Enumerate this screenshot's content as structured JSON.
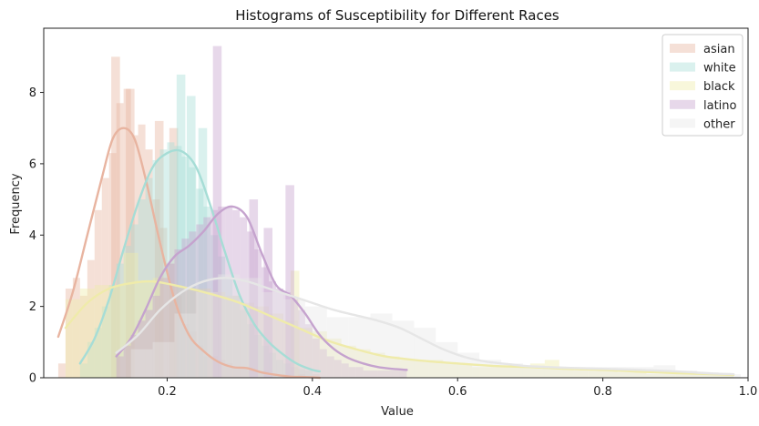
{
  "chart_data": {
    "type": "histogram",
    "title": "Histograms of Susceptibility for Different Races",
    "xlabel": "Value",
    "ylabel": "Frequency",
    "xlim": [
      0.03,
      1.0
    ],
    "ylim": [
      0,
      9.8
    ],
    "xticks": [
      0.2,
      0.4,
      0.6,
      0.8,
      1.0
    ],
    "yticks": [
      0,
      2,
      4,
      6,
      8
    ],
    "grid": false,
    "legend_position": "top-right",
    "series": [
      {
        "name": "asian",
        "color": "#E8B4A0",
        "bins": [
          [
            0.05,
            0.4
          ],
          [
            0.06,
            2.5
          ],
          [
            0.07,
            2.8
          ],
          [
            0.08,
            2.3
          ],
          [
            0.09,
            3.3
          ],
          [
            0.1,
            4.7
          ],
          [
            0.11,
            5.6
          ],
          [
            0.12,
            6.3
          ],
          [
            0.13,
            7.7
          ],
          [
            0.14,
            8.1
          ],
          [
            0.15,
            6.8
          ],
          [
            0.16,
            7.1
          ],
          [
            0.17,
            6.4
          ],
          [
            0.18,
            5.0
          ],
          [
            0.19,
            4.2
          ],
          [
            0.2,
            3.2
          ],
          [
            0.21,
            2.3
          ],
          [
            0.22,
            1.5
          ],
          [
            0.23,
            1.3
          ],
          [
            0.24,
            0.9
          ],
          [
            0.25,
            0.6
          ],
          [
            0.26,
            0.6
          ],
          [
            0.27,
            0.5
          ],
          [
            0.28,
            0.4
          ],
          [
            0.29,
            0.3
          ],
          [
            0.3,
            0.3
          ],
          [
            0.31,
            0.2
          ],
          [
            0.32,
            0.2
          ],
          [
            0.33,
            0.2
          ],
          [
            0.34,
            0.1
          ],
          [
            0.36,
            0.1
          ],
          [
            0.38,
            0.1
          ],
          [
            0.4,
            0.1
          ]
        ],
        "spikes": [
          [
            0.123,
            9.0
          ],
          [
            0.143,
            8.1
          ],
          [
            0.183,
            7.2
          ],
          [
            0.203,
            7.0
          ]
        ],
        "kde": [
          [
            0.05,
            1.15
          ],
          [
            0.07,
            2.4
          ],
          [
            0.09,
            4.0
          ],
          [
            0.11,
            5.6
          ],
          [
            0.125,
            6.7
          ],
          [
            0.14,
            7.0
          ],
          [
            0.155,
            6.7
          ],
          [
            0.17,
            5.6
          ],
          [
            0.19,
            3.8
          ],
          [
            0.21,
            2.2
          ],
          [
            0.23,
            1.2
          ],
          [
            0.25,
            0.75
          ],
          [
            0.27,
            0.45
          ],
          [
            0.29,
            0.3
          ],
          [
            0.31,
            0.27
          ],
          [
            0.33,
            0.15
          ],
          [
            0.35,
            0.08
          ],
          [
            0.37,
            0.03
          ],
          [
            0.39,
            0.02
          ],
          [
            0.41,
            0.0
          ]
        ]
      },
      {
        "name": "white",
        "color": "#A6DDD6",
        "bins": [
          [
            0.08,
            0.4
          ],
          [
            0.09,
            1.0
          ],
          [
            0.1,
            1.4
          ],
          [
            0.11,
            2.0
          ],
          [
            0.12,
            2.6
          ],
          [
            0.13,
            3.2
          ],
          [
            0.14,
            3.7
          ],
          [
            0.15,
            4.3
          ],
          [
            0.16,
            5.0
          ],
          [
            0.17,
            5.6
          ],
          [
            0.18,
            6.1
          ],
          [
            0.19,
            6.4
          ],
          [
            0.2,
            6.6
          ],
          [
            0.21,
            6.5
          ],
          [
            0.22,
            6.2
          ],
          [
            0.23,
            5.9
          ],
          [
            0.24,
            5.3
          ],
          [
            0.25,
            4.8
          ],
          [
            0.26,
            4.0
          ],
          [
            0.27,
            3.4
          ],
          [
            0.28,
            2.8
          ],
          [
            0.29,
            2.3
          ],
          [
            0.3,
            1.9
          ],
          [
            0.31,
            1.5
          ],
          [
            0.32,
            1.2
          ],
          [
            0.33,
            0.9
          ],
          [
            0.34,
            0.7
          ],
          [
            0.35,
            0.5
          ],
          [
            0.36,
            0.4
          ],
          [
            0.37,
            0.3
          ],
          [
            0.38,
            0.25
          ],
          [
            0.39,
            0.2
          ]
        ],
        "spikes": [
          [
            0.213,
            8.5
          ],
          [
            0.227,
            7.9
          ],
          [
            0.243,
            7.0
          ]
        ],
        "kde": [
          [
            0.08,
            0.4
          ],
          [
            0.1,
            1.1
          ],
          [
            0.12,
            2.2
          ],
          [
            0.14,
            3.6
          ],
          [
            0.16,
            4.9
          ],
          [
            0.18,
            5.9
          ],
          [
            0.2,
            6.3
          ],
          [
            0.22,
            6.35
          ],
          [
            0.24,
            5.9
          ],
          [
            0.26,
            4.8
          ],
          [
            0.28,
            3.5
          ],
          [
            0.3,
            2.3
          ],
          [
            0.32,
            1.5
          ],
          [
            0.34,
            1.0
          ],
          [
            0.36,
            0.65
          ],
          [
            0.38,
            0.38
          ],
          [
            0.4,
            0.22
          ],
          [
            0.41,
            0.18
          ]
        ]
      },
      {
        "name": "black",
        "color": "#EFEBAA",
        "bins": [
          [
            0.06,
            2.2
          ],
          [
            0.08,
            2.5
          ],
          [
            0.1,
            2.6
          ],
          [
            0.12,
            2.6
          ],
          [
            0.14,
            3.5
          ],
          [
            0.16,
            2.7
          ],
          [
            0.18,
            2.8
          ],
          [
            0.2,
            2.6
          ],
          [
            0.22,
            2.5
          ],
          [
            0.24,
            2.5
          ],
          [
            0.26,
            2.4
          ],
          [
            0.28,
            2.3
          ],
          [
            0.3,
            2.1
          ],
          [
            0.32,
            2.0
          ],
          [
            0.34,
            1.8
          ],
          [
            0.36,
            1.6
          ],
          [
            0.38,
            1.4
          ],
          [
            0.4,
            1.3
          ],
          [
            0.42,
            1.1
          ],
          [
            0.44,
            0.9
          ],
          [
            0.46,
            0.8
          ],
          [
            0.48,
            0.7
          ],
          [
            0.5,
            0.6
          ],
          [
            0.52,
            0.5
          ],
          [
            0.54,
            0.5
          ],
          [
            0.56,
            0.5
          ],
          [
            0.58,
            0.4
          ],
          [
            0.6,
            0.4
          ],
          [
            0.62,
            0.3
          ],
          [
            0.64,
            0.3
          ],
          [
            0.66,
            0.3
          ],
          [
            0.68,
            0.3
          ],
          [
            0.7,
            0.4
          ],
          [
            0.72,
            0.5
          ],
          [
            0.74,
            0.3
          ],
          [
            0.76,
            0.2
          ],
          [
            0.78,
            0.2
          ],
          [
            0.8,
            0.2
          ],
          [
            0.82,
            0.15
          ],
          [
            0.84,
            0.15
          ],
          [
            0.86,
            0.1
          ],
          [
            0.88,
            0.1
          ],
          [
            0.9,
            0.1
          ],
          [
            0.92,
            0.1
          ],
          [
            0.94,
            0.1
          ],
          [
            0.96,
            0.1
          ]
        ],
        "spikes": [
          [
            0.37,
            3.0
          ]
        ],
        "kde": [
          [
            0.06,
            1.4
          ],
          [
            0.09,
            2.1
          ],
          [
            0.12,
            2.5
          ],
          [
            0.15,
            2.65
          ],
          [
            0.18,
            2.7
          ],
          [
            0.22,
            2.55
          ],
          [
            0.26,
            2.35
          ],
          [
            0.3,
            2.1
          ],
          [
            0.34,
            1.75
          ],
          [
            0.38,
            1.4
          ],
          [
            0.42,
            1.05
          ],
          [
            0.46,
            0.8
          ],
          [
            0.5,
            0.6
          ],
          [
            0.55,
            0.48
          ],
          [
            0.6,
            0.4
          ],
          [
            0.65,
            0.33
          ],
          [
            0.7,
            0.3
          ],
          [
            0.75,
            0.25
          ],
          [
            0.8,
            0.22
          ],
          [
            0.85,
            0.17
          ],
          [
            0.9,
            0.13
          ],
          [
            0.95,
            0.1
          ],
          [
            0.98,
            0.08
          ]
        ]
      },
      {
        "name": "latino",
        "color": "#C5A3CE",
        "bins": [
          [
            0.13,
            0.6
          ],
          [
            0.14,
            0.9
          ],
          [
            0.15,
            1.2
          ],
          [
            0.16,
            1.6
          ],
          [
            0.17,
            1.9
          ],
          [
            0.18,
            2.3
          ],
          [
            0.19,
            2.8
          ],
          [
            0.2,
            3.2
          ],
          [
            0.21,
            3.6
          ],
          [
            0.22,
            3.9
          ],
          [
            0.23,
            4.1
          ],
          [
            0.24,
            4.3
          ],
          [
            0.25,
            4.5
          ],
          [
            0.26,
            4.7
          ],
          [
            0.27,
            4.8
          ],
          [
            0.28,
            4.8
          ],
          [
            0.29,
            4.7
          ],
          [
            0.3,
            4.5
          ],
          [
            0.31,
            4.1
          ],
          [
            0.32,
            3.6
          ],
          [
            0.33,
            3.1
          ],
          [
            0.34,
            2.7
          ],
          [
            0.35,
            2.5
          ],
          [
            0.36,
            2.4
          ],
          [
            0.37,
            2.2
          ],
          [
            0.38,
            1.9
          ],
          [
            0.39,
            1.5
          ],
          [
            0.4,
            1.1
          ],
          [
            0.41,
            0.8
          ],
          [
            0.42,
            0.6
          ],
          [
            0.43,
            0.5
          ],
          [
            0.44,
            0.4
          ],
          [
            0.45,
            0.3
          ],
          [
            0.46,
            0.3
          ],
          [
            0.47,
            0.2
          ],
          [
            0.48,
            0.2
          ],
          [
            0.49,
            0.2
          ],
          [
            0.5,
            0.2
          ],
          [
            0.51,
            0.2
          ],
          [
            0.52,
            0.2
          ]
        ],
        "spikes": [
          [
            0.263,
            9.3
          ],
          [
            0.313,
            5.0
          ],
          [
            0.363,
            5.4
          ],
          [
            0.333,
            4.2
          ]
        ],
        "kde": [
          [
            0.13,
            0.6
          ],
          [
            0.15,
            1.1
          ],
          [
            0.17,
            1.9
          ],
          [
            0.19,
            2.8
          ],
          [
            0.21,
            3.4
          ],
          [
            0.23,
            3.7
          ],
          [
            0.25,
            4.1
          ],
          [
            0.27,
            4.6
          ],
          [
            0.29,
            4.8
          ],
          [
            0.31,
            4.5
          ],
          [
            0.33,
            3.5
          ],
          [
            0.35,
            2.6
          ],
          [
            0.37,
            2.3
          ],
          [
            0.39,
            1.8
          ],
          [
            0.41,
            1.2
          ],
          [
            0.43,
            0.8
          ],
          [
            0.45,
            0.55
          ],
          [
            0.47,
            0.4
          ],
          [
            0.49,
            0.3
          ],
          [
            0.51,
            0.25
          ],
          [
            0.53,
            0.22
          ]
        ]
      },
      {
        "name": "other",
        "color": "#E6E6E6",
        "bins": [
          [
            0.15,
            0.8
          ],
          [
            0.18,
            1.0
          ],
          [
            0.21,
            1.8
          ],
          [
            0.24,
            2.4
          ],
          [
            0.27,
            2.9
          ],
          [
            0.3,
            2.8
          ],
          [
            0.33,
            2.4
          ],
          [
            0.36,
            2.2
          ],
          [
            0.39,
            2.0
          ],
          [
            0.42,
            1.7
          ],
          [
            0.45,
            1.7
          ],
          [
            0.48,
            1.8
          ],
          [
            0.51,
            1.6
          ],
          [
            0.54,
            1.4
          ],
          [
            0.57,
            1.0
          ],
          [
            0.6,
            0.7
          ],
          [
            0.63,
            0.5
          ],
          [
            0.66,
            0.4
          ],
          [
            0.69,
            0.35
          ],
          [
            0.72,
            0.3
          ],
          [
            0.75,
            0.3
          ],
          [
            0.78,
            0.3
          ],
          [
            0.81,
            0.3
          ],
          [
            0.84,
            0.3
          ],
          [
            0.87,
            0.35
          ],
          [
            0.9,
            0.2
          ],
          [
            0.93,
            0.15
          ],
          [
            0.96,
            0.1
          ]
        ],
        "spikes": [],
        "kde": [
          [
            0.13,
            0.7
          ],
          [
            0.16,
            1.2
          ],
          [
            0.19,
            1.9
          ],
          [
            0.22,
            2.4
          ],
          [
            0.25,
            2.7
          ],
          [
            0.28,
            2.8
          ],
          [
            0.31,
            2.7
          ],
          [
            0.34,
            2.5
          ],
          [
            0.37,
            2.3
          ],
          [
            0.4,
            2.1
          ],
          [
            0.43,
            1.9
          ],
          [
            0.46,
            1.75
          ],
          [
            0.49,
            1.6
          ],
          [
            0.52,
            1.4
          ],
          [
            0.55,
            1.1
          ],
          [
            0.58,
            0.8
          ],
          [
            0.61,
            0.58
          ],
          [
            0.64,
            0.45
          ],
          [
            0.67,
            0.38
          ],
          [
            0.7,
            0.32
          ],
          [
            0.75,
            0.28
          ],
          [
            0.8,
            0.25
          ],
          [
            0.85,
            0.22
          ],
          [
            0.9,
            0.18
          ],
          [
            0.95,
            0.12
          ],
          [
            0.98,
            0.1
          ]
        ]
      }
    ]
  }
}
